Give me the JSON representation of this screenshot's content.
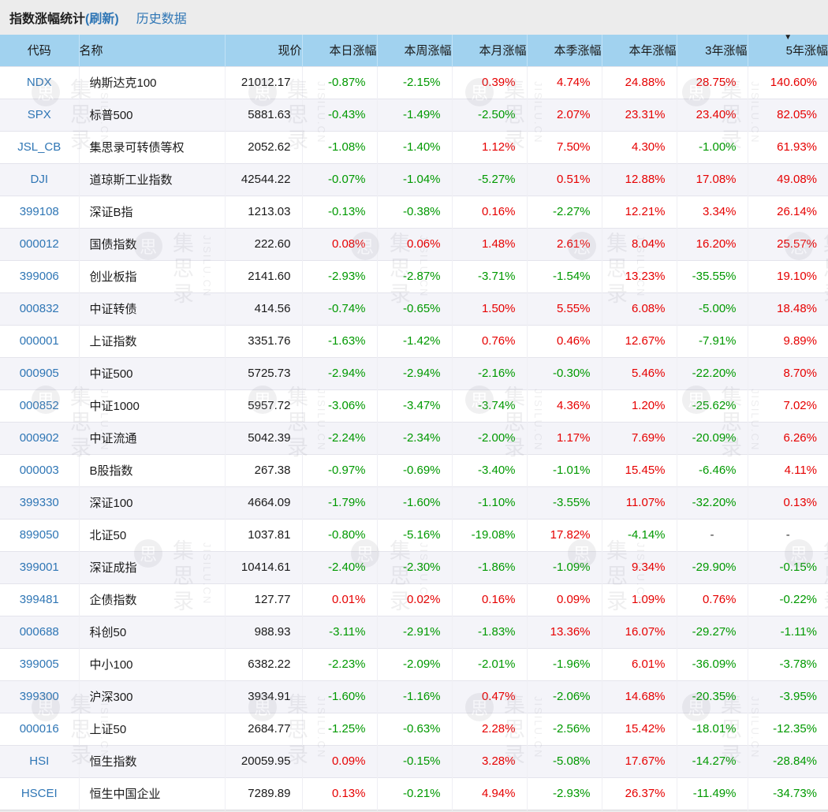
{
  "header": {
    "title": "指数涨幅统计",
    "refresh": "(刷新)",
    "history": "历史数据"
  },
  "watermark": {
    "logo": "思",
    "cn": "集思录",
    "en": "JISILU.CN"
  },
  "colors": {
    "positive": "#e60000",
    "negative": "#009900",
    "link": "#2f76b5",
    "header_bg": "#a1d2ef"
  },
  "table": {
    "sort_key": "y5",
    "sort_icon": "▼",
    "columns": [
      {
        "key": "code",
        "label": "代码",
        "type": "text"
      },
      {
        "key": "name",
        "label": "名称",
        "type": "text"
      },
      {
        "key": "price",
        "label": "现价",
        "type": "num"
      },
      {
        "key": "d1",
        "label": "本日涨幅",
        "type": "pct"
      },
      {
        "key": "w1",
        "label": "本周涨幅",
        "type": "pct"
      },
      {
        "key": "m1",
        "label": "本月涨幅",
        "type": "pct"
      },
      {
        "key": "q1",
        "label": "本季涨幅",
        "type": "pct"
      },
      {
        "key": "y1",
        "label": "本年涨幅",
        "type": "pct"
      },
      {
        "key": "y3",
        "label": "3年涨幅",
        "type": "pct"
      },
      {
        "key": "y5",
        "label": "5年涨幅",
        "type": "pct"
      }
    ],
    "rows": [
      [
        "NDX",
        "纳斯达克100",
        "21012.17",
        "-0.87%",
        "-2.15%",
        "0.39%",
        "4.74%",
        "24.88%",
        "28.75%",
        "140.60%"
      ],
      [
        "SPX",
        "标普500",
        "5881.63",
        "-0.43%",
        "-1.49%",
        "-2.50%",
        "2.07%",
        "23.31%",
        "23.40%",
        "82.05%"
      ],
      [
        "JSL_CB",
        "集思录可转债等权",
        "2052.62",
        "-1.08%",
        "-1.40%",
        "1.12%",
        "7.50%",
        "4.30%",
        "-1.00%",
        "61.93%"
      ],
      [
        "DJI",
        "道琼斯工业指数",
        "42544.22",
        "-0.07%",
        "-1.04%",
        "-5.27%",
        "0.51%",
        "12.88%",
        "17.08%",
        "49.08%"
      ],
      [
        "399108",
        "深证B指",
        "1213.03",
        "-0.13%",
        "-0.38%",
        "0.16%",
        "-2.27%",
        "12.21%",
        "3.34%",
        "26.14%"
      ],
      [
        "000012",
        "国债指数",
        "222.60",
        "0.08%",
        "0.06%",
        "1.48%",
        "2.61%",
        "8.04%",
        "16.20%",
        "25.57%"
      ],
      [
        "399006",
        "创业板指",
        "2141.60",
        "-2.93%",
        "-2.87%",
        "-3.71%",
        "-1.54%",
        "13.23%",
        "-35.55%",
        "19.10%"
      ],
      [
        "000832",
        "中证转债",
        "414.56",
        "-0.74%",
        "-0.65%",
        "1.50%",
        "5.55%",
        "6.08%",
        "-5.00%",
        "18.48%"
      ],
      [
        "000001",
        "上证指数",
        "3351.76",
        "-1.63%",
        "-1.42%",
        "0.76%",
        "0.46%",
        "12.67%",
        "-7.91%",
        "9.89%"
      ],
      [
        "000905",
        "中证500",
        "5725.73",
        "-2.94%",
        "-2.94%",
        "-2.16%",
        "-0.30%",
        "5.46%",
        "-22.20%",
        "8.70%"
      ],
      [
        "000852",
        "中证1000",
        "5957.72",
        "-3.06%",
        "-3.47%",
        "-3.74%",
        "4.36%",
        "1.20%",
        "-25.62%",
        "7.02%"
      ],
      [
        "000902",
        "中证流通",
        "5042.39",
        "-2.24%",
        "-2.34%",
        "-2.00%",
        "1.17%",
        "7.69%",
        "-20.09%",
        "6.26%"
      ],
      [
        "000003",
        "B股指数",
        "267.38",
        "-0.97%",
        "-0.69%",
        "-3.40%",
        "-1.01%",
        "15.45%",
        "-6.46%",
        "4.11%"
      ],
      [
        "399330",
        "深证100",
        "4664.09",
        "-1.79%",
        "-1.60%",
        "-1.10%",
        "-3.55%",
        "11.07%",
        "-32.20%",
        "0.13%"
      ],
      [
        "899050",
        "北证50",
        "1037.81",
        "-0.80%",
        "-5.16%",
        "-19.08%",
        "17.82%",
        "-4.14%",
        "-",
        "-"
      ],
      [
        "399001",
        "深证成指",
        "10414.61",
        "-2.40%",
        "-2.30%",
        "-1.86%",
        "-1.09%",
        "9.34%",
        "-29.90%",
        "-0.15%"
      ],
      [
        "399481",
        "企债指数",
        "127.77",
        "0.01%",
        "0.02%",
        "0.16%",
        "0.09%",
        "1.09%",
        "0.76%",
        "-0.22%"
      ],
      [
        "000688",
        "科创50",
        "988.93",
        "-3.11%",
        "-2.91%",
        "-1.83%",
        "13.36%",
        "16.07%",
        "-29.27%",
        "-1.11%"
      ],
      [
        "399005",
        "中小100",
        "6382.22",
        "-2.23%",
        "-2.09%",
        "-2.01%",
        "-1.96%",
        "6.01%",
        "-36.09%",
        "-3.78%"
      ],
      [
        "399300",
        "沪深300",
        "3934.91",
        "-1.60%",
        "-1.16%",
        "0.47%",
        "-2.06%",
        "14.68%",
        "-20.35%",
        "-3.95%"
      ],
      [
        "000016",
        "上证50",
        "2684.77",
        "-1.25%",
        "-0.63%",
        "2.28%",
        "-2.56%",
        "15.42%",
        "-18.01%",
        "-12.35%"
      ],
      [
        "HSI",
        "恒生指数",
        "20059.95",
        "0.09%",
        "-0.15%",
        "3.28%",
        "-5.08%",
        "17.67%",
        "-14.27%",
        "-28.84%"
      ],
      [
        "HSCEI",
        "恒生中国企业",
        "7289.89",
        "0.13%",
        "-0.21%",
        "4.94%",
        "-2.93%",
        "26.37%",
        "-11.49%",
        "-34.73%"
      ]
    ]
  }
}
